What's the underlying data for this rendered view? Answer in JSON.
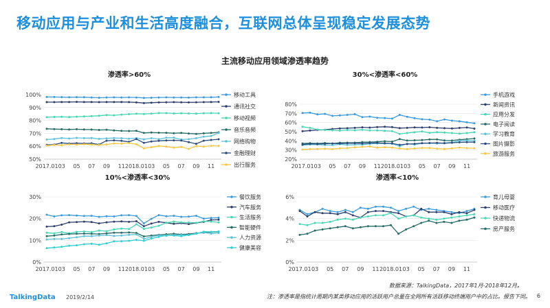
{
  "page": {
    "title": "移动应用与产业和生活高度融合，互联网总体呈现稳定发展态势",
    "subtitle": "主流移动应用领域渗透率趋势",
    "source": "数据来源：TalkingData，2017年1月-2018年12月。",
    "note": "注：渗透率是指统计周期内某类移动应用的活跃用户总量在全网所有活跃移动终端用户中的占比。报告下同。",
    "logo": "TalkingData",
    "date": "2019/2/14",
    "page_number": "6"
  },
  "chart_data": [
    {
      "type": "line",
      "title": "渗透率>60%",
      "x_tick_labels": [
        "2017.01",
        "03",
        "05",
        "07",
        "09",
        "11",
        "2018.01",
        "03",
        "05",
        "07",
        "09",
        "11"
      ],
      "x_count": 24,
      "y_ticks": [
        "50%",
        "60%",
        "70%",
        "80%",
        "90%",
        "100%"
      ],
      "ylim": [
        50,
        100
      ],
      "series": [
        {
          "name": "移动工具",
          "color": "#3a9bdc",
          "values": [
            98.2,
            98.2,
            98.1,
            98.0,
            98.1,
            98.0,
            97.8,
            97.6,
            97.8,
            97.9,
            97.8,
            97.9,
            97.8,
            97.5,
            97.6,
            97.8,
            97.9,
            97.8,
            97.8,
            97.7,
            97.9,
            97.9,
            98.0,
            98.2
          ]
        },
        {
          "name": "通讯社交",
          "color": "#2c3e6b",
          "values": [
            94.2,
            94.2,
            94.3,
            94.3,
            94.4,
            94.3,
            94.3,
            94.2,
            94.3,
            94.3,
            94.3,
            94.2,
            94.0,
            93.5,
            93.8,
            94.0,
            94.1,
            94.2,
            94.1,
            94.0,
            94.1,
            94.2,
            94.3,
            94.4
          ]
        },
        {
          "name": "移动视频",
          "color": "#45d6b4",
          "values": [
            82.5,
            82.7,
            82.8,
            82.6,
            82.9,
            83.1,
            83.4,
            83.6,
            84.2,
            84.0,
            84.5,
            84.9,
            85.2,
            85.0,
            85.3,
            85.7,
            85.7,
            85.4,
            85.6,
            85.4,
            85.3,
            85.6,
            85.7,
            85.6
          ]
        },
        {
          "name": "音乐音频",
          "color": "#246b66",
          "values": [
            73.5,
            73.3,
            73.2,
            73.0,
            73.2,
            73.0,
            72.9,
            72.6,
            72.8,
            72.3,
            71.9,
            71.8,
            71.9,
            70.3,
            70.7,
            70.5,
            70.4,
            70.1,
            70.3,
            69.9,
            69.6,
            70.0,
            70.3,
            70.8
          ]
        },
        {
          "name": "网络购物",
          "color": "#5dc2d9",
          "values": [
            65.2,
            65.6,
            66.4,
            66.0,
            66.5,
            66.3,
            66.4,
            65.7,
            66.1,
            66.4,
            66.2,
            65.9,
            66.3,
            65.3,
            66.2,
            65.5,
            66.6,
            66.6,
            65.2,
            65.5,
            66.2,
            67.4,
            68.0,
            70.3
          ]
        },
        {
          "name": "金融理财",
          "color": "#2b4a7d",
          "values": [
            61.1,
            61.3,
            62.6,
            62.1,
            62.4,
            62.2,
            62.3,
            61.4,
            64.3,
            64.6,
            64.2,
            63.4,
            65.6,
            62.6,
            63.7,
            64.2,
            64.5,
            64.6,
            64.4,
            63.2,
            61.9,
            64.3,
            64.9,
            65.4
          ]
        },
        {
          "name": "出行服务",
          "color": "#f5c842",
          "values": [
            60.5,
            61.0,
            60.8,
            61.5,
            61.2,
            61.6,
            61.3,
            61.0,
            61.4,
            62.2,
            62.0,
            62.5,
            61.5,
            58.4,
            59.2,
            60.2,
            59.8,
            58.9,
            59.4,
            58.0,
            60.1,
            59.8,
            60.3,
            60.3
          ]
        }
      ]
    },
    {
      "type": "line",
      "title": "30%<渗透率<60%",
      "x_tick_labels": [
        "2017.01",
        "03",
        "05",
        "07",
        "09",
        "11",
        "2018.01",
        "03",
        "05",
        "07",
        "09",
        "11"
      ],
      "x_count": 24,
      "y_ticks": [
        "20%",
        "30%",
        "40%",
        "50%",
        "60%",
        "70%",
        "80%"
      ],
      "ylim": [
        20,
        80
      ],
      "series": [
        {
          "name": "手机游戏",
          "color": "#3a9bdc",
          "values": [
            70.5,
            70.8,
            68.9,
            69.5,
            67.3,
            67.8,
            68.4,
            69.1,
            66.0,
            66.5,
            65.2,
            64.9,
            64.3,
            68.4,
            66.3,
            64.8,
            63.6,
            63.2,
            61.5,
            63.4,
            62.1,
            61.4,
            60.3,
            59.2
          ]
        },
        {
          "name": "新闻资讯",
          "color": "#2c3e6b",
          "values": [
            50.5,
            51.3,
            51.9,
            52.1,
            53.0,
            53.6,
            53.8,
            54.2,
            54.8,
            54.5,
            55.1,
            55.4,
            55.0,
            53.9,
            54.2,
            54.7,
            54.6,
            54.9,
            54.2,
            53.8,
            53.5,
            54.1,
            54.6,
            53.4
          ]
        },
        {
          "name": "应用分发",
          "color": "#45d6b4",
          "values": [
            55.4,
            54.2,
            52.3,
            51.9,
            51.6,
            51.2,
            51.9,
            51.6,
            52.1,
            51.5,
            51.4,
            51.0,
            50.7,
            47.6,
            48.6,
            49.5,
            50.3,
            48.7,
            49.4,
            49.0,
            48.5,
            48.0,
            48.5,
            49.4
          ]
        },
        {
          "name": "电子阅读",
          "color": "#246b66",
          "values": [
            37.2,
            37.4,
            37.2,
            37.6,
            37.1,
            37.9,
            38.0,
            38.0,
            38.5,
            38.7,
            39.0,
            39.6,
            39.1,
            41.9,
            40.3,
            40.6,
            40.9,
            41.5,
            41.6,
            40.4,
            40.3,
            41.2,
            41.8,
            42.6
          ]
        },
        {
          "name": "学习教育",
          "color": "#5dc2d9",
          "values": [
            35.3,
            35.9,
            36.0,
            35.4,
            35.4,
            36.3,
            35.5,
            35.9,
            35.8,
            36.6,
            37.2,
            37.1,
            36.9,
            34.1,
            36.9,
            35.8,
            37.3,
            37.5,
            37.1,
            37.7,
            38.2,
            40.0,
            40.5,
            40.2
          ]
        },
        {
          "name": "图片摄影",
          "color": "#2b4a7d",
          "values": [
            36.0,
            36.7,
            36.5,
            36.8,
            37.2,
            37.0,
            37.3,
            37.5,
            37.1,
            37.6,
            37.8,
            37.4,
            37.2,
            35.7,
            36.5,
            36.8,
            37.5,
            37.6,
            37.8,
            37.4,
            37.9,
            38.4,
            38.6,
            38.6
          ]
        },
        {
          "name": "旅游服务",
          "color": "#f5c842",
          "values": [
            30.5,
            31.0,
            31.2,
            31.5,
            31.0,
            31.8,
            32.1,
            32.8,
            33.4,
            33.9,
            32.5,
            33.0,
            32.6,
            31.6,
            31.0,
            31.6,
            32.2,
            32.3,
            31.5,
            31.2,
            31.8,
            32.7,
            32.1,
            31.9
          ]
        }
      ]
    },
    {
      "type": "line",
      "title": "10%<渗透率<30%",
      "x_tick_labels": [
        "2017.01",
        "03",
        "05",
        "07",
        "09",
        "11",
        "2018.01",
        "03",
        "05",
        "07",
        "09",
        "11"
      ],
      "x_count": 24,
      "y_ticks": [
        "0%",
        "10%",
        "20%",
        "30%"
      ],
      "ylim": [
        0,
        30
      ],
      "series": [
        {
          "name": "餐饮服务",
          "color": "#3a9bdc",
          "values": [
            21.8,
            21.0,
            21.5,
            21.6,
            21.4,
            21.2,
            21.3,
            20.8,
            21.1,
            21.0,
            21.5,
            21.6,
            21.2,
            17.8,
            19.9,
            21.6,
            21.1,
            21.3,
            20.8,
            20.9,
            21.3,
            20.0,
            20.3,
            20.4
          ]
        },
        {
          "name": "汽车服务",
          "color": "#2c3e6b",
          "values": [
            16.3,
            16.5,
            17.2,
            18.3,
            18.4,
            18.6,
            18.4,
            17.8,
            18.3,
            18.6,
            18.7,
            18.5,
            18.8,
            16.5,
            17.7,
            18.5,
            18.1,
            17.6,
            17.9,
            17.5,
            18.0,
            18.5,
            19.4,
            19.5
          ]
        },
        {
          "name": "生活服务",
          "color": "#45d6b4",
          "values": [
            13.5,
            13.2,
            13.8,
            13.2,
            13.9,
            14.1,
            13.8,
            14.5,
            14.2,
            15.0,
            15.4,
            15.2,
            17.4,
            15.3,
            15.9,
            16.7,
            18.1,
            18.6,
            18.3,
            18.2,
            18.1,
            18.8,
            18.6,
            18.3
          ]
        },
        {
          "name": "智能硬件",
          "color": "#246b66",
          "values": [
            11.9,
            12.2,
            12.7,
            12.9,
            13.0,
            13.1,
            13.0,
            12.9,
            13.2,
            13.5,
            13.5,
            13.6,
            13.4,
            11.8,
            12.2,
            12.5,
            12.8,
            13.0,
            12.7,
            12.9,
            13.3,
            13.5,
            13.8,
            14.0
          ]
        },
        {
          "name": "人力资源",
          "color": "#5dc2d9",
          "values": [
            10.4,
            10.6,
            10.6,
            11.0,
            11.4,
            11.9,
            11.9,
            12.2,
            12.4,
            12.0,
            12.2,
            12.5,
            12.7,
            10.7,
            11.6,
            12.3,
            12.1,
            12.4,
            12.5,
            12.4,
            13.2,
            13.6,
            13.1,
            13.4
          ]
        },
        {
          "name": "健康美容",
          "color": "#2ecfd1",
          "values": [
            6.4,
            6.7,
            7.0,
            7.5,
            7.7,
            8.2,
            8.4,
            8.0,
            8.6,
            9.5,
            9.6,
            9.8,
            10.2,
            9.8,
            10.8,
            11.6,
            12.3,
            12.2,
            11.9,
            12.5,
            13.0,
            14.0,
            13.9,
            14.1
          ]
        }
      ]
    },
    {
      "type": "line",
      "title": "渗透率<10%",
      "x_tick_labels": [
        "2017.01",
        "03",
        "05",
        "07",
        "09",
        "11",
        "2018.01",
        "03",
        "05",
        "07",
        "09",
        "11"
      ],
      "x_count": 24,
      "y_ticks": [
        "0%",
        "2%",
        "4%",
        "6%"
      ],
      "ylim": [
        0,
        6
      ],
      "series": [
        {
          "name": "育儿母婴",
          "color": "#3a9bdc",
          "values": [
            4.8,
            4.4,
            4.6,
            4.9,
            4.7,
            4.6,
            4.8,
            4.6,
            5.0,
            4.9,
            5.1,
            5.1,
            5.0,
            4.7,
            4.9,
            5.1,
            4.8,
            4.9,
            4.8,
            4.7,
            4.6,
            4.5,
            4.7,
            4.9
          ]
        },
        {
          "name": "移动医疗",
          "color": "#2c3e6b",
          "values": [
            4.7,
            4.2,
            4.6,
            4.5,
            4.5,
            4.4,
            4.6,
            4.3,
            4.1,
            4.6,
            4.7,
            4.7,
            4.6,
            4.5,
            4.2,
            4.3,
            4.9,
            4.6,
            4.6,
            4.6,
            4.4,
            4.6,
            4.5,
            4.8
          ]
        },
        {
          "name": "快递物流",
          "color": "#45d6b4",
          "values": [
            3.5,
            3.4,
            3.6,
            3.6,
            3.7,
            3.9,
            4.0,
            3.9,
            4.1,
            4.2,
            4.3,
            4.3,
            4.5,
            4.0,
            4.2,
            4.3,
            4.1,
            4.0,
            3.9,
            4.0,
            4.1,
            4.2,
            4.3,
            4.4
          ]
        },
        {
          "name": "房产服务",
          "color": "#246b66",
          "values": [
            2.5,
            2.6,
            2.9,
            3.0,
            3.1,
            3.2,
            3.3,
            3.1,
            3.2,
            3.3,
            3.3,
            3.3,
            3.4,
            2.6,
            3.0,
            3.3,
            3.6,
            3.8,
            3.6,
            3.7,
            3.6,
            3.8,
            3.9,
            4.1
          ]
        }
      ]
    }
  ]
}
